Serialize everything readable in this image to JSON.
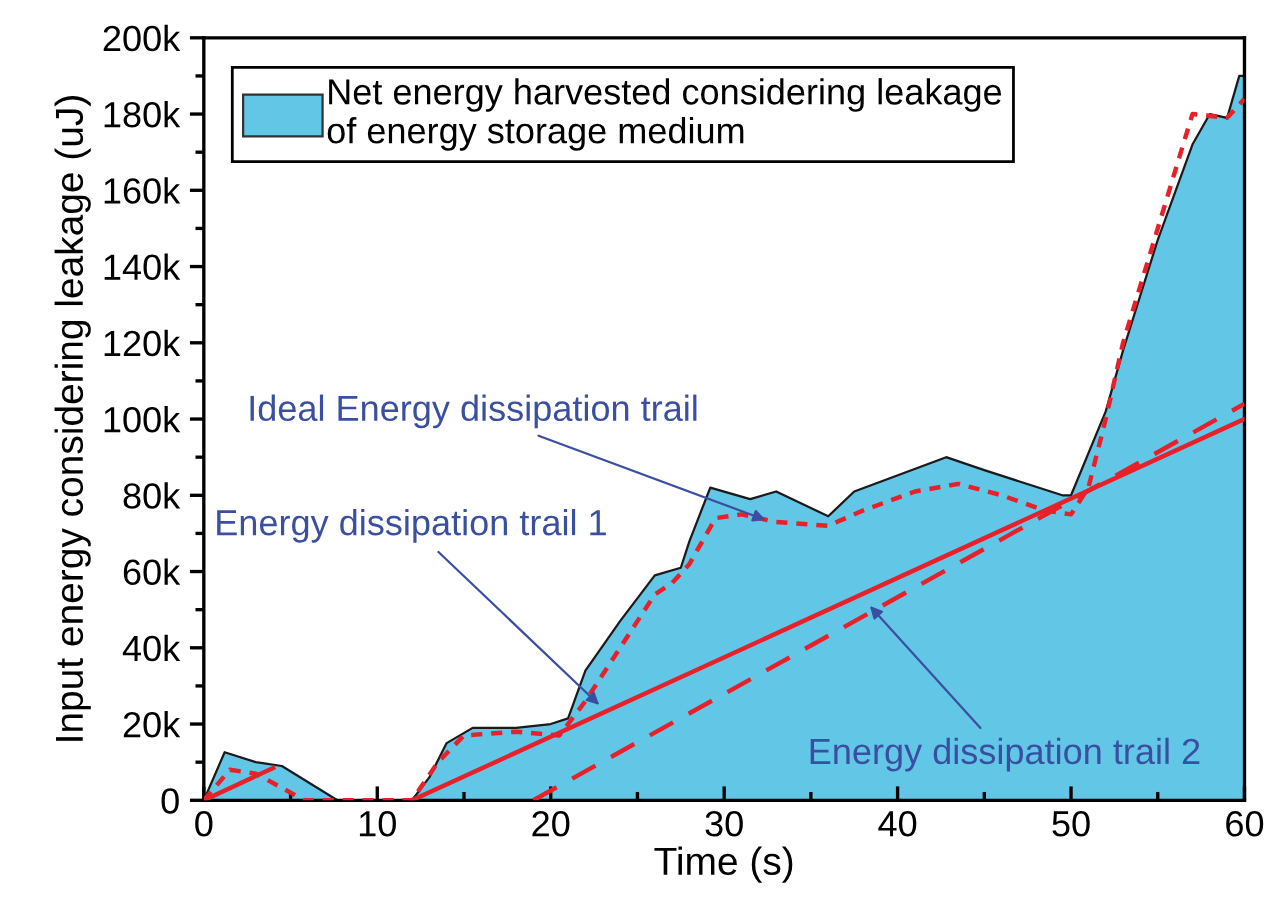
{
  "chart_data": {
    "type": "line",
    "xlabel": "Time (s)",
    "ylabel": "Input energy considering leakage (uJ)",
    "xlim": [
      0,
      60
    ],
    "xticks": [
      0,
      10,
      20,
      30,
      40,
      50,
      60
    ],
    "ylim": [
      0,
      200000
    ],
    "yticks": [
      {
        "value": 0,
        "label": "0"
      },
      {
        "value": 20000,
        "label": "20k"
      },
      {
        "value": 40000,
        "label": "40k"
      },
      {
        "value": 60000,
        "label": "60k"
      },
      {
        "value": 80000,
        "label": "80k"
      },
      {
        "value": 100000,
        "label": "100k"
      },
      {
        "value": 120000,
        "label": "120k"
      },
      {
        "value": 140000,
        "label": "140k"
      },
      {
        "value": 160000,
        "label": "160k"
      },
      {
        "value": 180000,
        "label": "180k"
      },
      {
        "value": 200000,
        "label": "200k"
      }
    ],
    "grid": false,
    "legend": "top left",
    "marker": "none",
    "series": [
      {
        "type": "area",
        "name": "Net energy harvested considering leakage\nof energy storage medium",
        "color": "#62c6e6",
        "x": [
          0,
          1.2,
          3,
          4.5,
          7.7,
          12,
          13,
          14,
          15.5,
          18,
          20,
          21,
          22,
          24,
          26,
          27.5,
          28,
          29.2,
          31.5,
          33,
          36,
          37.5,
          42.8,
          45,
          49.5,
          50,
          52,
          53,
          55,
          57,
          58,
          59,
          59.7,
          60
        ],
        "values": [
          0,
          12600,
          10000,
          9000,
          0,
          0,
          6000,
          15000,
          19000,
          19000,
          20000,
          21500,
          34000,
          47000,
          59000,
          61000,
          68000,
          82000,
          79000,
          81000,
          74500,
          81000,
          90000,
          86600,
          80000,
          80000,
          102000,
          118000,
          147000,
          172000,
          180000,
          179000,
          190000,
          190000
        ]
      },
      {
        "line_style": "dotted",
        "color": "#e8202a",
        "x": [
          0,
          1.5,
          3,
          5.8,
          12,
          13.5,
          15,
          18,
          20.5,
          22,
          24,
          26,
          27,
          28,
          29.5,
          31,
          33,
          36,
          38,
          41,
          43.5,
          46,
          48.5,
          50,
          51,
          52,
          53,
          55,
          57,
          59,
          60
        ],
        "values": [
          0,
          8000,
          7000,
          0,
          0,
          10000,
          17000,
          18000,
          17000,
          26000,
          40000,
          54000,
          57000,
          62000,
          74000,
          75000,
          73000,
          72000,
          76000,
          81000,
          83000,
          80000,
          76000,
          75000,
          82000,
          100000,
          120000,
          150000,
          180000,
          179000,
          184000
        ]
      },
      {
        "line_style": "solid",
        "color": "#e8202a",
        "x": [
          0,
          4,
          null,
          12,
          60
        ],
        "values": [
          0,
          8500,
          null,
          0,
          100000
        ]
      },
      {
        "line_style": "dashed",
        "color": "#e8202a",
        "x": [
          19,
          60
        ],
        "values": [
          0,
          104000
        ]
      }
    ],
    "annotations": [
      {
        "text": "Ideal Energy dissipation trail",
        "x": 32.4,
        "y": 73500
      },
      {
        "text": "Energy dissipation trail 1",
        "x": 22.8,
        "y": 25000
      },
      {
        "text": "Energy dissipation trail 2",
        "x": 38.4,
        "y": 51000
      }
    ]
  }
}
